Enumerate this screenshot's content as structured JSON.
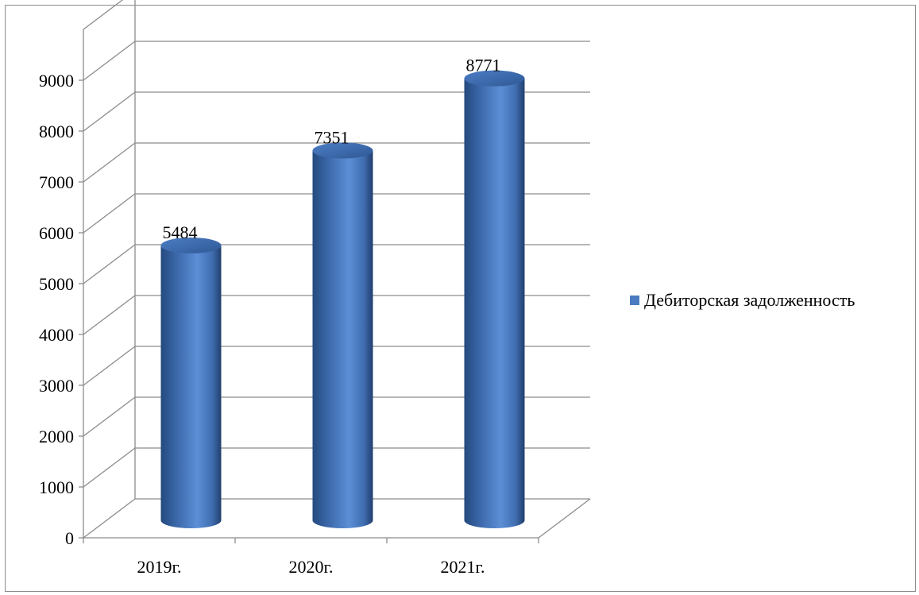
{
  "chart_data": {
    "type": "bar",
    "style": "3d-cylinder",
    "categories": [
      "2019г.",
      "2020г.",
      "2021г."
    ],
    "series": [
      {
        "name": "Дебиторская задолженность",
        "values": [
          5484,
          7351,
          8771
        ],
        "color": "#4a7ac0"
      }
    ],
    "data_labels": [
      "5484",
      "7351",
      "8771"
    ],
    "y_ticks": [
      0,
      1000,
      2000,
      3000,
      4000,
      5000,
      6000,
      7000,
      8000,
      9000
    ],
    "ylim": [
      0,
      10000
    ],
    "grid": true,
    "legend_position": "right"
  }
}
